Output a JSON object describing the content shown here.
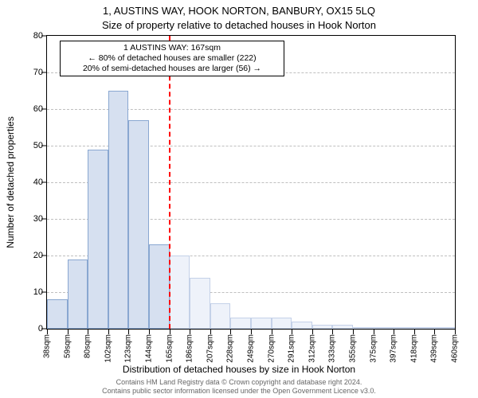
{
  "chart": {
    "type": "histogram",
    "title_line1": "1, AUSTINS WAY, HOOK NORTON, BANBURY, OX15 5LQ",
    "title_line2": "Size of property relative to detached houses in Hook Norton",
    "ylabel": "Number of detached properties",
    "xlabel": "Distribution of detached houses by size in Hook Norton",
    "background_color": "#ffffff",
    "grid_color": "#bfbfbf",
    "axis_color": "#000000",
    "ylim": [
      0,
      80
    ],
    "ytick_step": 10,
    "yticks": [
      0,
      10,
      20,
      30,
      40,
      50,
      60,
      70,
      80
    ],
    "xticks": [
      "38sqm",
      "59sqm",
      "80sqm",
      "102sqm",
      "123sqm",
      "144sqm",
      "165sqm",
      "186sqm",
      "207sqm",
      "228sqm",
      "249sqm",
      "270sqm",
      "291sqm",
      "312sqm",
      "333sqm",
      "355sqm",
      "375sqm",
      "397sqm",
      "418sqm",
      "439sqm",
      "460sqm"
    ],
    "bars": {
      "left_values": [
        8,
        19,
        49,
        65,
        57,
        23
      ],
      "right_values": [
        20,
        14,
        7,
        3,
        3,
        3,
        2,
        1,
        1,
        0.5,
        0.5,
        0.5,
        0.5,
        0.5
      ],
      "left_fill": "#d6e0f0",
      "left_stroke": "#89a7d1",
      "right_fill": "#eef2fa",
      "right_stroke": "#c4d1e8",
      "bar_border_width": 1
    },
    "reference_line": {
      "x_index": 6,
      "color": "#ff0000",
      "dash": "dashed",
      "width": 2
    },
    "annotation": {
      "line1": "1 AUSTINS WAY: 167sqm",
      "line2": "← 80% of detached houses are smaller (222)",
      "line3": "20% of semi-detached houses are larger (56) →",
      "border_color": "#000000",
      "background": "#ffffff",
      "fontsize": 10.5
    },
    "title_fontsize": 13,
    "label_fontsize": 12,
    "tick_fontsize": 11,
    "xtick_fontsize": 10
  },
  "footer": {
    "line1": "Contains HM Land Registry data © Crown copyright and database right 2024.",
    "line2": "Contains public sector information licensed under the Open Government Licence v3.0."
  }
}
